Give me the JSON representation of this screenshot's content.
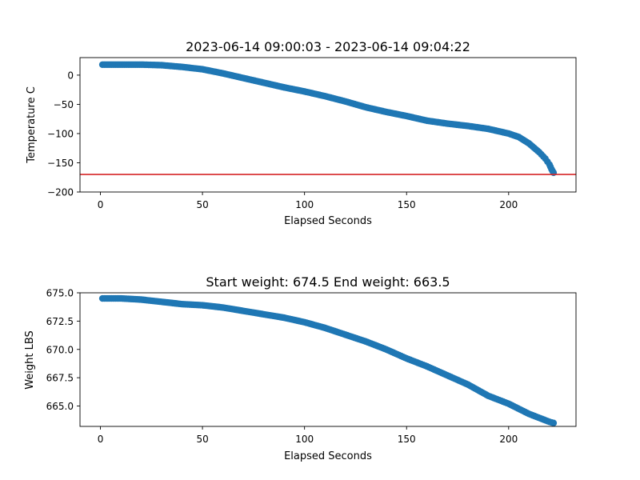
{
  "chart_data": [
    {
      "type": "scatter",
      "title": "2023-06-14 09:00:03 - 2023-06-14 09:04:22",
      "xlabel": "Elapsed Seconds",
      "ylabel": "Temperature C",
      "xlim": [
        -10,
        233
      ],
      "ylim": [
        -200,
        30
      ],
      "xticks": [
        0,
        50,
        100,
        150,
        200
      ],
      "yticks": [
        -200,
        -150,
        -100,
        -50,
        0
      ],
      "ytick_labels": [
        "−200",
        "−150",
        "−100",
        "−50",
        "0"
      ],
      "marker_color": "#1f77b4",
      "reference_line": {
        "y": -170,
        "color": "#d62728"
      },
      "series": [
        {
          "x": [
            1,
            10,
            20,
            30,
            40,
            50,
            60,
            70,
            80,
            90,
            100,
            110,
            120,
            130,
            140,
            150,
            160,
            170,
            180,
            190,
            200,
            205,
            210,
            215,
            218,
            220,
            221,
            222
          ],
          "y": [
            18,
            18,
            18,
            17,
            14,
            10,
            3,
            -5,
            -13,
            -21,
            -28,
            -36,
            -45,
            -55,
            -63,
            -70,
            -78,
            -83,
            -87,
            -92,
            -100,
            -106,
            -117,
            -132,
            -143,
            -153,
            -161,
            -167
          ]
        }
      ]
    },
    {
      "type": "scatter",
      "title": "Start weight: 674.5 End weight: 663.5",
      "xlabel": "Elapsed Seconds",
      "ylabel": "Weight LBS",
      "xlim": [
        -10,
        233
      ],
      "ylim": [
        663.2,
        675.0
      ],
      "xticks": [
        0,
        50,
        100,
        150,
        200
      ],
      "yticks": [
        665.0,
        667.5,
        670.0,
        672.5,
        675.0
      ],
      "ytick_labels": [
        "665.0",
        "667.5",
        "670.0",
        "672.5",
        "675.0"
      ],
      "marker_color": "#1f77b4",
      "series": [
        {
          "x": [
            1,
            10,
            20,
            30,
            40,
            50,
            60,
            70,
            80,
            90,
            100,
            110,
            120,
            130,
            140,
            150,
            160,
            170,
            180,
            190,
            200,
            210,
            220,
            222
          ],
          "y": [
            674.5,
            674.5,
            674.4,
            674.2,
            674.0,
            673.9,
            673.7,
            673.4,
            673.1,
            672.8,
            672.4,
            671.9,
            671.3,
            670.7,
            670.0,
            669.2,
            668.5,
            667.7,
            666.9,
            665.9,
            665.2,
            664.3,
            663.6,
            663.5
          ]
        }
      ]
    }
  ]
}
